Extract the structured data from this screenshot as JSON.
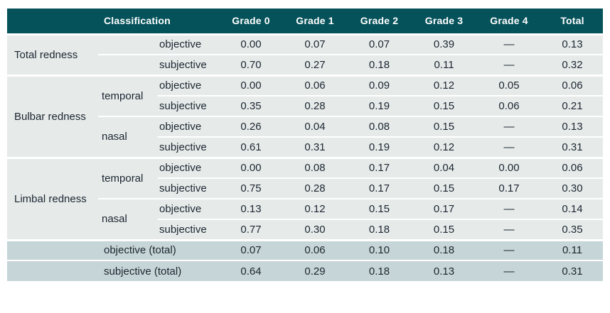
{
  "table": {
    "header": {
      "corner": "",
      "classification": "Classification",
      "grades": [
        "Grade 0",
        "Grade 1",
        "Grade 2",
        "Grade 3",
        "Grade 4",
        "Total"
      ]
    },
    "groups": [
      {
        "name": "Total redness",
        "subgroups": [
          {
            "region": "",
            "rows": [
              {
                "method": "objective",
                "values": [
                  "0.00",
                  "0.07",
                  "0.07",
                  "0.39",
                  "—",
                  "0.13"
                ]
              },
              {
                "method": "subjective",
                "values": [
                  "0.70",
                  "0.27",
                  "0.18",
                  "0.11",
                  "—",
                  "0.32"
                ]
              }
            ]
          }
        ]
      },
      {
        "name": "Bulbar redness",
        "subgroups": [
          {
            "region": "temporal",
            "rows": [
              {
                "method": "objective",
                "values": [
                  "0.00",
                  "0.06",
                  "0.09",
                  "0.12",
                  "0.05",
                  "0.06"
                ]
              },
              {
                "method": "subjective",
                "values": [
                  "0.35",
                  "0.28",
                  "0.19",
                  "0.15",
                  "0.06",
                  "0.21"
                ]
              }
            ]
          },
          {
            "region": "nasal",
            "rows": [
              {
                "method": "objective",
                "values": [
                  "0.26",
                  "0.04",
                  "0.08",
                  "0.15",
                  "—",
                  "0.13"
                ]
              },
              {
                "method": "subjective",
                "values": [
                  "0.61",
                  "0.31",
                  "0.19",
                  "0.12",
                  "—",
                  "0.31"
                ]
              }
            ]
          }
        ]
      },
      {
        "name": "Limbal redness",
        "subgroups": [
          {
            "region": "temporal",
            "rows": [
              {
                "method": "objective",
                "values": [
                  "0.00",
                  "0.08",
                  "0.17",
                  "0.04",
                  "0.00",
                  "0.06"
                ]
              },
              {
                "method": "subjective",
                "values": [
                  "0.75",
                  "0.28",
                  "0.17",
                  "0.15",
                  "0.17",
                  "0.30"
                ]
              }
            ]
          },
          {
            "region": "nasal",
            "rows": [
              {
                "method": "objective",
                "values": [
                  "0.13",
                  "0.12",
                  "0.15",
                  "0.17",
                  "—",
                  "0.14"
                ]
              },
              {
                "method": "subjective",
                "values": [
                  "0.77",
                  "0.30",
                  "0.18",
                  "0.15",
                  "—",
                  "0.35"
                ]
              }
            ]
          }
        ]
      }
    ],
    "footer": [
      {
        "label": "objective (total)",
        "values": [
          "0.07",
          "0.06",
          "0.10",
          "0.18",
          "—",
          "0.11"
        ]
      },
      {
        "label": "subjective (total)",
        "values": [
          "0.64",
          "0.29",
          "0.18",
          "0.13",
          "—",
          "0.31"
        ]
      }
    ]
  },
  "colors": {
    "header_bg": "#05525a",
    "row_bg": "#e6ebea",
    "footer_bg": "#c6d5d7",
    "text": "#1c2530",
    "header_text": "#ffffff",
    "separator": "#ffffff"
  },
  "chart_data": {
    "type": "table",
    "columns": [
      "",
      "Classification",
      "",
      "Grade 0",
      "Grade 1",
      "Grade 2",
      "Grade 3",
      "Grade 4",
      "Total"
    ],
    "rows": [
      [
        "Total redness",
        "",
        "objective",
        "0.00",
        "0.07",
        "0.07",
        "0.39",
        "—",
        "0.13"
      ],
      [
        "",
        "",
        "subjective",
        "0.70",
        "0.27",
        "0.18",
        "0.11",
        "—",
        "0.32"
      ],
      [
        "Bulbar redness",
        "temporal",
        "objective",
        "0.00",
        "0.06",
        "0.09",
        "0.12",
        "0.05",
        "0.06"
      ],
      [
        "",
        "",
        "subjective",
        "0.35",
        "0.28",
        "0.19",
        "0.15",
        "0.06",
        "0.21"
      ],
      [
        "",
        "nasal",
        "objective",
        "0.26",
        "0.04",
        "0.08",
        "0.15",
        "—",
        "0.13"
      ],
      [
        "",
        "",
        "subjective",
        "0.61",
        "0.31",
        "0.19",
        "0.12",
        "—",
        "0.31"
      ],
      [
        "Limbal redness",
        "temporal",
        "objective",
        "0.00",
        "0.08",
        "0.17",
        "0.04",
        "0.00",
        "0.06"
      ],
      [
        "",
        "",
        "subjective",
        "0.75",
        "0.28",
        "0.17",
        "0.15",
        "0.17",
        "0.30"
      ],
      [
        "",
        "nasal",
        "objective",
        "0.13",
        "0.12",
        "0.15",
        "0.17",
        "—",
        "0.14"
      ],
      [
        "",
        "",
        "subjective",
        "0.77",
        "0.30",
        "0.18",
        "0.15",
        "—",
        "0.35"
      ],
      [
        "",
        "objective (total)",
        "",
        "0.07",
        "0.06",
        "0.10",
        "0.18",
        "—",
        "0.11"
      ],
      [
        "",
        "subjective (total)",
        "",
        "0.64",
        "0.29",
        "0.18",
        "0.13",
        "—",
        "0.31"
      ]
    ]
  }
}
